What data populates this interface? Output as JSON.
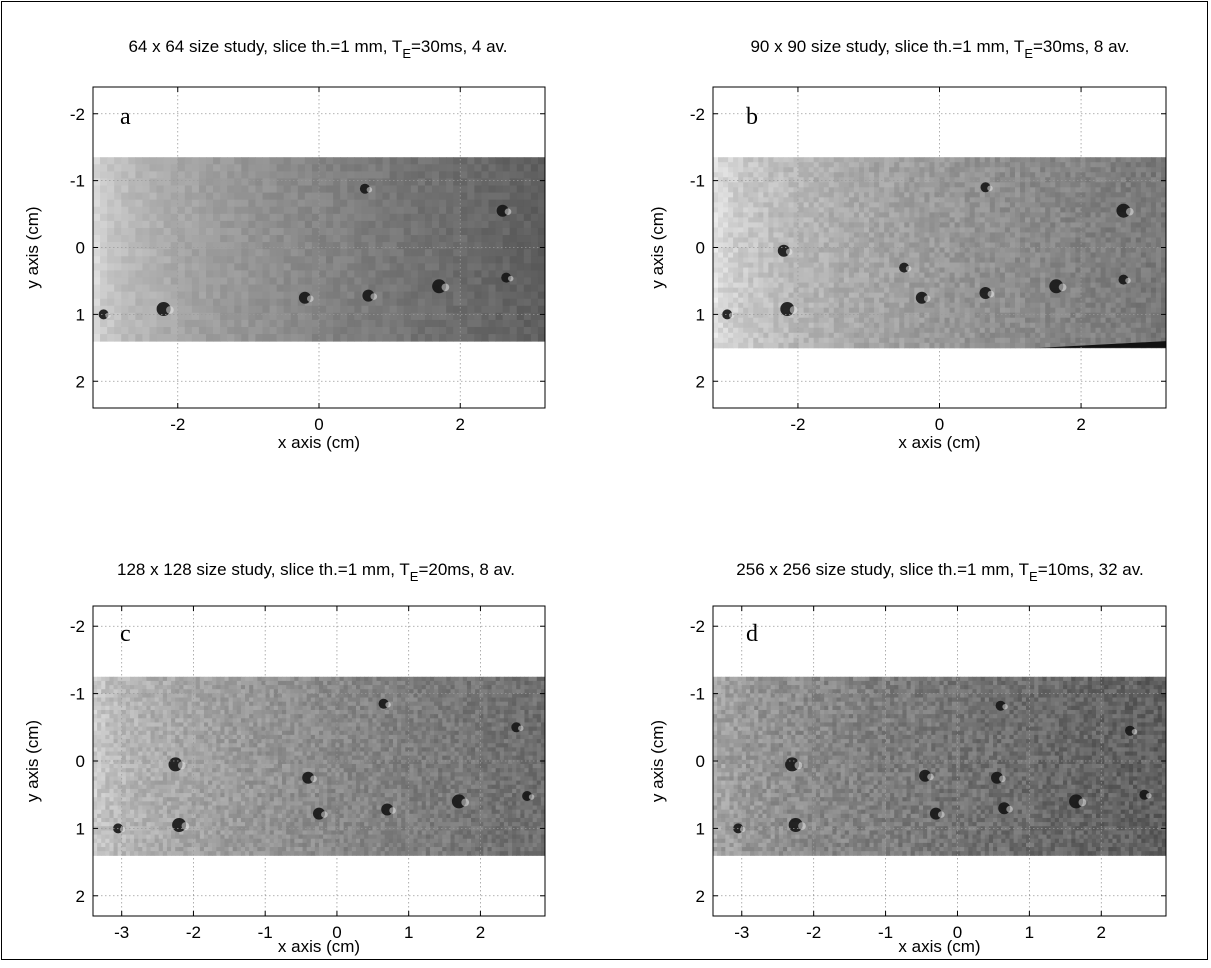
{
  "chart_data": [
    {
      "type": "heatmap",
      "panel_label": "a",
      "title": "64 x 64 size study, slice th.=1 mm, T",
      "title_subscript": "E",
      "title_suffix": "=30ms, 4 av.",
      "xlabel": "x axis (cm)",
      "ylabel": "y axis (cm)",
      "xlim": [
        -3.2,
        3.2
      ],
      "ylim": [
        2.4,
        -2.4
      ],
      "xticks": [
        -2,
        0,
        2
      ],
      "yticks": [
        -2,
        -1,
        0,
        1,
        2
      ],
      "grid": true,
      "image_extent": {
        "x": [
          -3.2,
          3.2
        ],
        "y": [
          -1.35,
          1.4
        ]
      },
      "voxels": 64,
      "dark_spots": [
        [
          0.65,
          -0.88
        ],
        [
          0.7,
          0.72
        ],
        [
          1.7,
          0.58
        ],
        [
          2.65,
          0.45
        ],
        [
          -0.2,
          0.75
        ],
        [
          -2.2,
          0.92
        ],
        [
          -3.05,
          1.0
        ],
        [
          2.6,
          -0.55
        ]
      ]
    },
    {
      "type": "heatmap",
      "panel_label": "b",
      "title": "90 x 90 size study, slice th.=1 mm, T",
      "title_subscript": "E",
      "title_suffix": "=30ms, 8 av.",
      "xlabel": "x axis (cm)",
      "ylabel": "y axis (cm)",
      "xlim": [
        -3.2,
        3.2
      ],
      "ylim": [
        2.4,
        -2.4
      ],
      "xticks": [
        -2,
        0,
        2
      ],
      "yticks": [
        -2,
        -1,
        0,
        1,
        2
      ],
      "grid": true,
      "image_extent": {
        "x": [
          -3.2,
          3.2
        ],
        "y": [
          -1.35,
          1.5
        ]
      },
      "voxels": 90,
      "dark_spots": [
        [
          0.65,
          -0.9
        ],
        [
          0.65,
          0.68
        ],
        [
          1.65,
          0.58
        ],
        [
          2.6,
          0.48
        ],
        [
          -0.25,
          0.75
        ],
        [
          -2.15,
          0.92
        ],
        [
          -3.0,
          1.0
        ],
        [
          -2.2,
          0.05
        ],
        [
          2.6,
          -0.55
        ],
        [
          -0.5,
          0.3
        ]
      ]
    },
    {
      "type": "heatmap",
      "panel_label": "c",
      "title": "128 x 128 size study, slice th.=1 mm, T",
      "title_subscript": "E",
      "title_suffix": "=20ms, 8 av.",
      "xlabel": "x axis (cm)",
      "ylabel": "y axis (cm)",
      "xlim": [
        -3.4,
        2.9
      ],
      "ylim": [
        2.3,
        -2.3
      ],
      "xticks": [
        -3,
        -2,
        -1,
        0,
        1,
        2
      ],
      "yticks": [
        -2,
        -1,
        0,
        1,
        2
      ],
      "grid": true,
      "image_extent": {
        "x": [
          -3.4,
          2.9
        ],
        "y": [
          -1.25,
          1.4
        ]
      },
      "voxels": 128,
      "dark_spots": [
        [
          0.65,
          -0.85
        ],
        [
          0.7,
          0.72
        ],
        [
          1.7,
          0.6
        ],
        [
          2.65,
          0.52
        ],
        [
          -0.25,
          0.78
        ],
        [
          -2.2,
          0.95
        ],
        [
          -3.05,
          1.0
        ],
        [
          -0.4,
          0.25
        ],
        [
          -2.25,
          0.05
        ],
        [
          2.5,
          -0.5
        ]
      ]
    },
    {
      "type": "heatmap",
      "panel_label": "d",
      "title": "256 x 256 size study, slice th.=1 mm, T",
      "title_subscript": "E",
      "title_suffix": "=10ms, 32 av.",
      "xlabel": "x axis (cm)",
      "ylabel": "y axis (cm)",
      "xlim": [
        -3.4,
        2.9
      ],
      "ylim": [
        2.3,
        -2.3
      ],
      "xticks": [
        -3,
        -2,
        -1,
        0,
        1,
        2
      ],
      "yticks": [
        -2,
        -1,
        0,
        1,
        2
      ],
      "grid": true,
      "image_extent": {
        "x": [
          -3.4,
          2.9
        ],
        "y": [
          -1.25,
          1.4
        ]
      },
      "voxels": 256,
      "dark_spots": [
        [
          0.6,
          -0.82
        ],
        [
          0.65,
          0.7
        ],
        [
          1.65,
          0.6
        ],
        [
          2.6,
          0.5
        ],
        [
          -0.3,
          0.78
        ],
        [
          -2.25,
          0.95
        ],
        [
          -3.05,
          1.0
        ],
        [
          -0.45,
          0.22
        ],
        [
          -2.3,
          0.05
        ],
        [
          2.4,
          -0.45
        ],
        [
          0.55,
          0.25
        ]
      ]
    }
  ]
}
